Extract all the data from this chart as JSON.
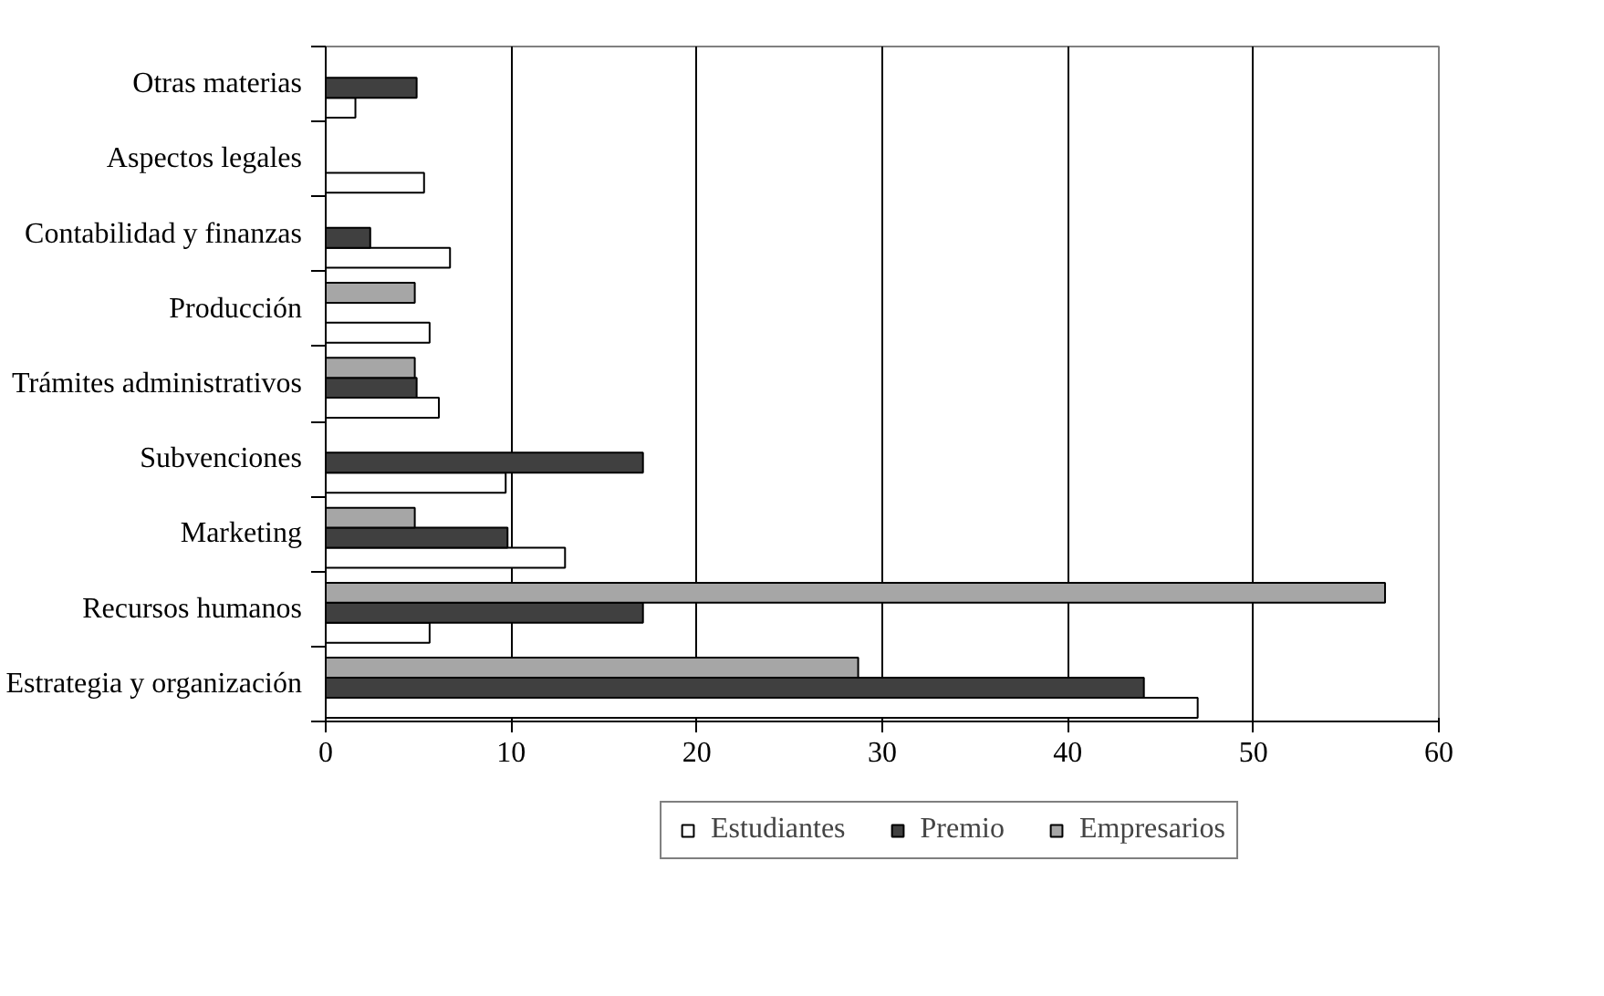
{
  "chart_data": {
    "type": "bar",
    "orientation": "horizontal",
    "categories": [
      "Otras materias",
      "Aspectos legales",
      "Contabilidad y finanzas",
      "Producción",
      "Trámites administrativos",
      "Subvenciones",
      "Marketing",
      "Recursos humanos",
      "Estrategia y organización"
    ],
    "series": [
      {
        "name": "Estudiantes",
        "color": "#ffffff",
        "values": [
          1.6,
          5.3,
          6.7,
          5.6,
          6.1,
          9.7,
          12.9,
          5.6,
          47
        ]
      },
      {
        "name": "Premio",
        "color": "#404040",
        "values": [
          4.9,
          null,
          2.4,
          null,
          4.9,
          17.1,
          9.8,
          17.1,
          44.1
        ]
      },
      {
        "name": "Empresarios",
        "color": "#a6a6a6",
        "values": [
          null,
          null,
          null,
          4.8,
          4.8,
          null,
          4.8,
          57.1,
          28.7
        ]
      }
    ],
    "xlim": [
      0,
      60
    ],
    "xticks": [
      0,
      10,
      20,
      30,
      40,
      50,
      60
    ],
    "grid": "x",
    "legend": "bottom"
  }
}
